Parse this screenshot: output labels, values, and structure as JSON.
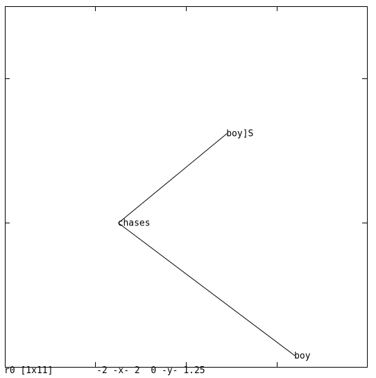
{
  "graph": {
    "nodes": [
      {
        "id": "chases",
        "label": "chases",
        "x": -0.75,
        "y": 0.5
      },
      {
        "id": "boyJS",
        "label": "boy]S",
        "x": 0.45,
        "y": 0.81
      },
      {
        "id": "boy",
        "label": "boy",
        "x": 1.2,
        "y": 0.04
      }
    ],
    "edges": [
      {
        "from": "chases",
        "to": "boyJS"
      },
      {
        "from": "chases",
        "to": "boy"
      }
    ],
    "xlim": [
      -2,
      2
    ],
    "ylim": [
      0,
      1.25
    ]
  },
  "status": {
    "matrix": "r0 [1x11]",
    "x_range": "-2 -x- 2",
    "y_range": "0 -y- 1.25"
  }
}
